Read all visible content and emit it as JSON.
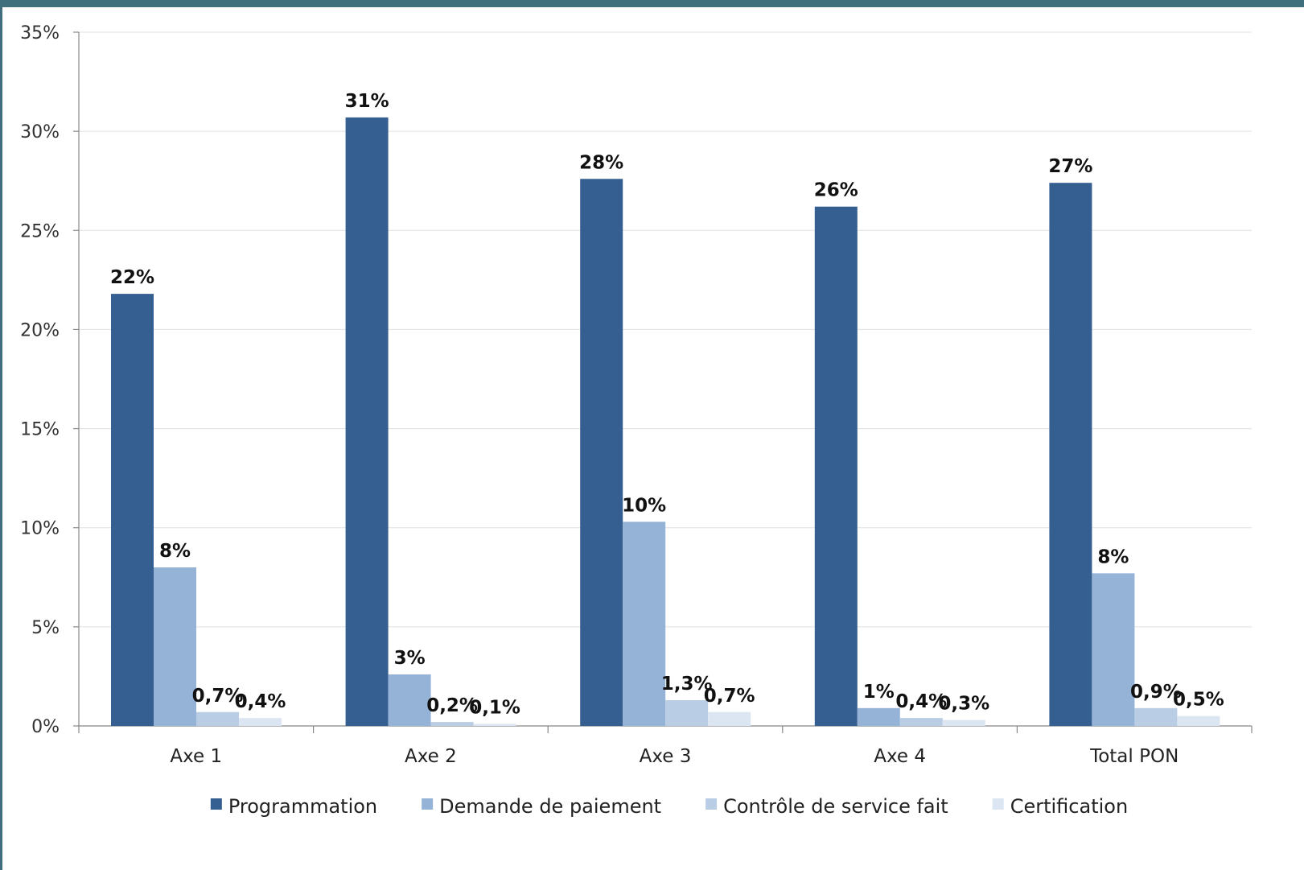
{
  "chart_data": {
    "type": "bar",
    "categories": [
      "Axe 1",
      "Axe 2",
      "Axe 3",
      "Axe 4",
      "Total PON"
    ],
    "series": [
      {
        "name": "Programmation",
        "color": "#365f91",
        "values": [
          21.8,
          30.7,
          27.6,
          26.2,
          27.4
        ],
        "labels": [
          "22%",
          "31%",
          "28%",
          "26%",
          "27%"
        ]
      },
      {
        "name": "Demande de paiement",
        "color": "#95b3d7",
        "values": [
          8.0,
          2.6,
          10.3,
          0.9,
          7.7
        ],
        "labels": [
          "8%",
          "3%",
          "10%",
          "1%",
          "8%"
        ]
      },
      {
        "name": "Contrôle de service fait",
        "color": "#b9cde5",
        "values": [
          0.7,
          0.2,
          1.3,
          0.4,
          0.9
        ],
        "labels": [
          "0,7%",
          "0,2%",
          "1,3%",
          "0,4%",
          "0,9%"
        ]
      },
      {
        "name": "Certification",
        "color": "#dce6f2",
        "values": [
          0.4,
          0.1,
          0.7,
          0.3,
          0.5
        ],
        "labels": [
          "0,4%",
          "0,1%",
          "0,7%",
          "0,3%",
          "0,5%"
        ]
      }
    ],
    "ylim": [
      0,
      35
    ],
    "yticks": [
      "0%",
      "5%",
      "10%",
      "15%",
      "20%",
      "25%",
      "30%",
      "35%"
    ],
    "grid": true,
    "legend_position": "bottom"
  }
}
